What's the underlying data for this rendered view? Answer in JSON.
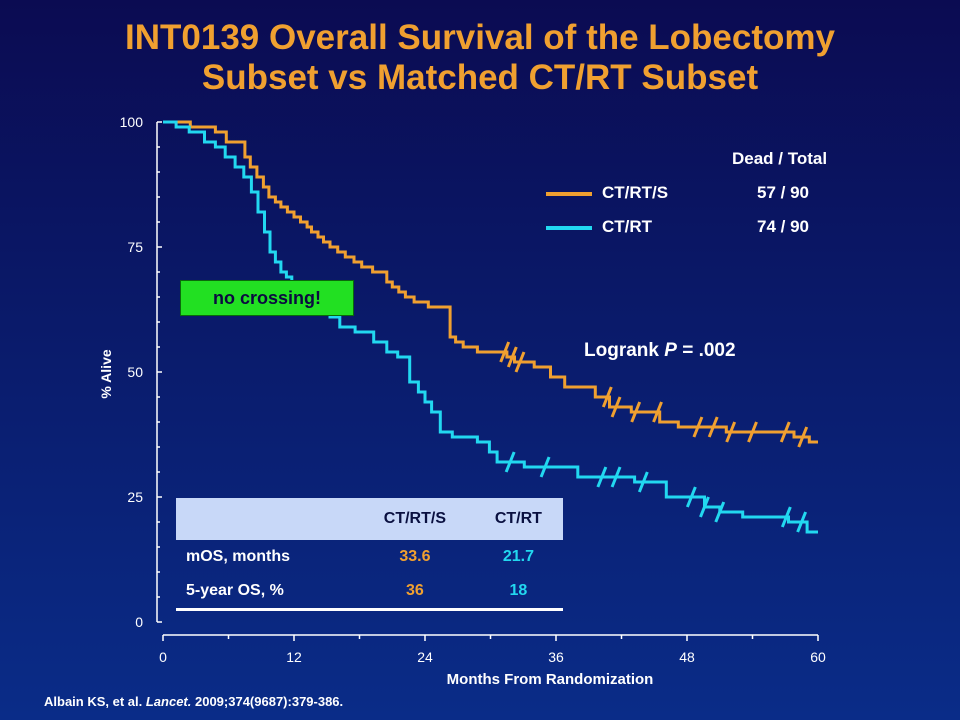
{
  "title": {
    "line1": "INT0139 Overall Survival of the Lobectomy",
    "line2": "Subset vs Matched CT/RT Subset"
  },
  "legend": {
    "header": "Dead / Total",
    "entries": [
      {
        "name": "CT/RT/S",
        "count": "57 / 90",
        "color": "#f0a030"
      },
      {
        "name": "CT/RT",
        "count": "74 / 90",
        "color": "#22d8f0"
      }
    ]
  },
  "logrank": {
    "prefix": "Logrank ",
    "p_label": "P",
    "suffix": " = .002"
  },
  "annotation": "no crossing!",
  "stats_table": {
    "columns": [
      "CT/RT/S",
      "CT/RT"
    ],
    "rows": [
      {
        "label": "mOS, months",
        "values": [
          "33.6",
          "21.7"
        ]
      },
      {
        "label": "5-year OS, %",
        "values": [
          "36",
          "18"
        ]
      }
    ]
  },
  "citation": {
    "authors": "Albain KS, et al. ",
    "journal": "Lancet.",
    "ref": " 2009;374(9687):379-386."
  },
  "colors": {
    "ct_rt_s": "#f0a030",
    "ct_rt": "#22d8f0",
    "annotation_bg": "#22e022"
  },
  "chart_data": {
    "type": "line",
    "title": "INT0139 Overall Survival of the Lobectomy Subset vs Matched CT/RT Subset",
    "xlabel": "Months From Randomization",
    "ylabel": "% Alive",
    "xlim": [
      0,
      60
    ],
    "ylim": [
      0,
      100
    ],
    "x_ticks": [
      0,
      12,
      24,
      36,
      48,
      60
    ],
    "y_ticks": [
      0,
      25,
      50,
      75,
      100
    ],
    "legend_position": "top-right",
    "series": [
      {
        "name": "CT/RT/S",
        "color": "#f0a030",
        "x": [
          0,
          2.5,
          4.8,
          5.8,
          7.5,
          8.0,
          8.6,
          9.2,
          9.7,
          10.3,
          10.8,
          11.4,
          12.0,
          12.6,
          13.2,
          13.6,
          14.2,
          14.7,
          15.3,
          16.0,
          16.7,
          17.5,
          18.2,
          19.2,
          20.5,
          21.0,
          21.6,
          22.2,
          23.0,
          24.3,
          26.3,
          26.8,
          27.5,
          28.8,
          31.5,
          32.2,
          34.0,
          35.5,
          36.8,
          39.6,
          40.9,
          42.9,
          45.5,
          47.2,
          51.6,
          57.8,
          59.2,
          60.0
        ],
        "y": [
          100,
          99,
          98,
          96,
          93,
          91,
          89,
          87,
          85,
          84,
          83,
          82,
          81,
          80,
          79,
          78,
          77,
          76,
          75,
          74,
          73,
          72,
          71,
          70,
          68,
          67,
          66,
          65,
          64,
          63,
          57,
          56,
          55,
          54,
          53,
          52,
          51,
          49,
          47,
          45,
          43,
          42,
          40,
          39,
          38,
          37,
          36,
          36
        ],
        "censor_x": [
          31.3,
          32.0,
          32.7,
          40.7,
          41.5,
          43.3,
          45.3,
          49.0,
          50.4,
          52.0,
          54.0,
          57.0,
          58.6
        ],
        "final_y": 36
      },
      {
        "name": "CT/RT",
        "color": "#22d8f0",
        "x": [
          0,
          1.2,
          2.4,
          3.8,
          4.8,
          5.7,
          6.6,
          7.4,
          8.1,
          8.7,
          9.3,
          9.8,
          10.3,
          10.8,
          11.3,
          11.8,
          12.5,
          13.2,
          14.0,
          14.6,
          15.3,
          16.2,
          17.6,
          19.3,
          20.5,
          21.5,
          22.6,
          23.4,
          24.0,
          24.6,
          25.4,
          26.5,
          28.8,
          29.9,
          30.6,
          33.1,
          38.0,
          43.2,
          46.1,
          49.6,
          51.0,
          53.1,
          57.3,
          59.0,
          60.0
        ],
        "y": [
          100,
          99,
          98,
          96,
          95,
          93,
          91,
          89,
          86,
          82,
          78,
          74,
          72,
          70,
          69,
          68,
          67,
          66,
          64,
          63,
          61,
          59,
          58,
          56,
          54,
          53,
          48,
          46,
          44,
          42,
          38,
          37,
          36,
          34,
          32,
          31,
          29,
          28,
          25,
          23,
          22,
          21,
          20,
          18,
          18
        ],
        "censor_x": [
          31.8,
          35.0,
          40.2,
          41.5,
          44.0,
          48.4,
          49.6,
          51.0,
          57.1,
          58.5
        ],
        "final_y": 18
      }
    ]
  }
}
